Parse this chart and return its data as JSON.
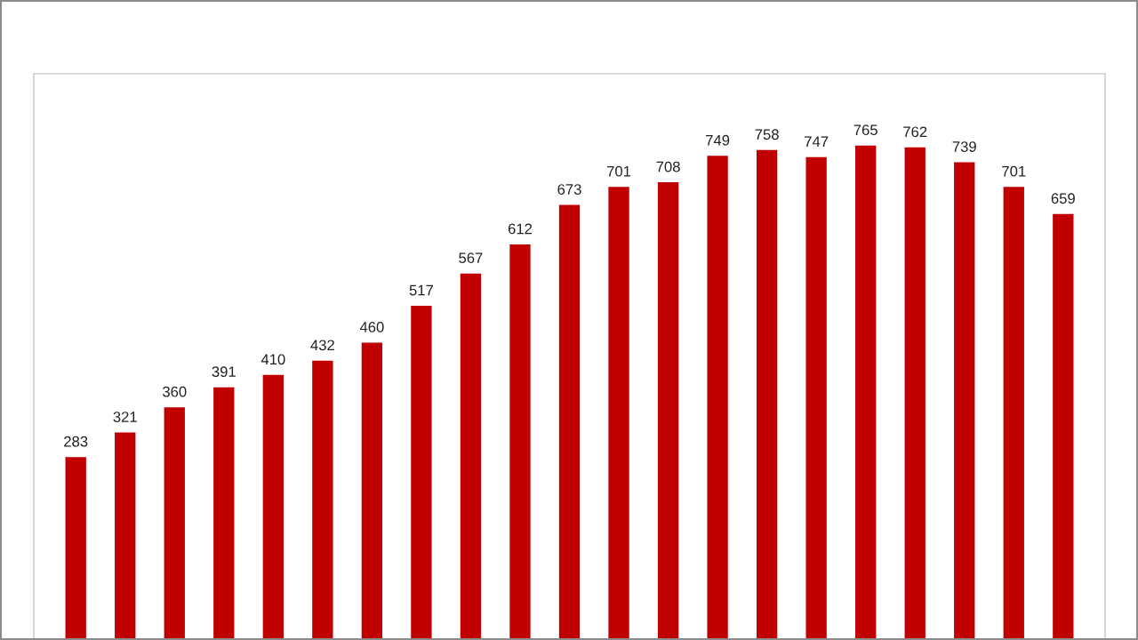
{
  "chart_data": {
    "type": "bar",
    "categories": [
      null,
      null,
      null,
      null,
      null,
      null,
      null,
      null,
      null,
      null,
      null,
      null,
      null,
      null,
      null,
      null,
      null,
      null,
      null,
      null,
      null
    ],
    "values": [
      283,
      321,
      360,
      391,
      410,
      432,
      460,
      517,
      567,
      612,
      673,
      701,
      708,
      749,
      758,
      747,
      765,
      762,
      739,
      701,
      659
    ],
    "color": "#c00000",
    "data_labels": true,
    "grid": false,
    "legend": false,
    "tick_labels": false
  }
}
